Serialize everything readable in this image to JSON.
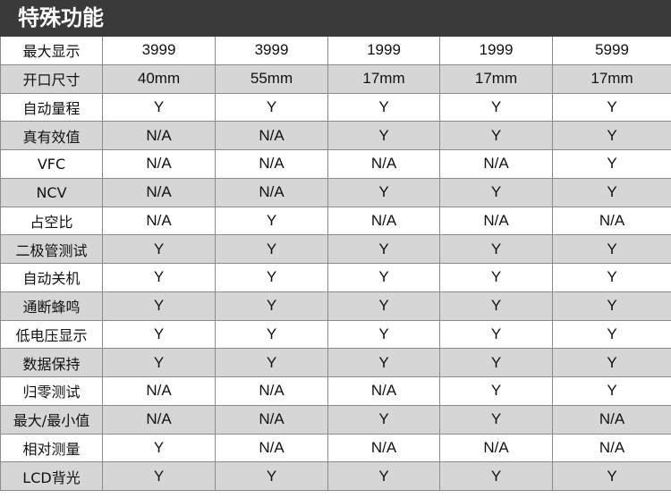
{
  "title": "特殊功能",
  "rows": [
    {
      "label": "最大显示",
      "values": [
        "3999",
        "3999",
        "1999",
        "1999",
        "5999"
      ]
    },
    {
      "label": "开口尺寸",
      "values": [
        "40mm",
        "55mm",
        "17mm",
        "17mm",
        "17mm"
      ]
    },
    {
      "label": "自动量程",
      "values": [
        "Y",
        "Y",
        "Y",
        "Y",
        "Y"
      ]
    },
    {
      "label": "真有效值",
      "values": [
        "N/A",
        "N/A",
        "Y",
        "Y",
        "Y"
      ]
    },
    {
      "label": "VFC",
      "values": [
        "N/A",
        "N/A",
        "N/A",
        "N/A",
        "Y"
      ]
    },
    {
      "label": "NCV",
      "values": [
        "N/A",
        "N/A",
        "Y",
        "Y",
        "Y"
      ]
    },
    {
      "label": "占空比",
      "values": [
        "N/A",
        "Y",
        "N/A",
        "N/A",
        "N/A"
      ]
    },
    {
      "label": "二极管测试",
      "values": [
        "Y",
        "Y",
        "Y",
        "Y",
        "Y"
      ]
    },
    {
      "label": "自动关机",
      "values": [
        "Y",
        "Y",
        "Y",
        "Y",
        "Y"
      ]
    },
    {
      "label": "通断蜂鸣",
      "values": [
        "Y",
        "Y",
        "Y",
        "Y",
        "Y"
      ]
    },
    {
      "label": "低电压显示",
      "values": [
        "Y",
        "Y",
        "Y",
        "Y",
        "Y"
      ]
    },
    {
      "label": "数据保持",
      "values": [
        "Y",
        "Y",
        "Y",
        "Y",
        "Y"
      ]
    },
    {
      "label": "归零测试",
      "values": [
        "N/A",
        "N/A",
        "N/A",
        "Y",
        "Y"
      ]
    },
    {
      "label": "最大/最小值",
      "values": [
        "N/A",
        "N/A",
        "Y",
        "Y",
        "N/A"
      ]
    },
    {
      "label": "相对测量",
      "values": [
        "Y",
        "N/A",
        "N/A",
        "N/A",
        "N/A"
      ]
    },
    {
      "label": "LCD背光",
      "values": [
        "Y",
        "Y",
        "Y",
        "Y",
        "Y"
      ]
    }
  ],
  "colors": {
    "header_bg": "#3a3a3a",
    "stripe_bg": "#d6d6d6",
    "border": "#8a8a8a"
  }
}
